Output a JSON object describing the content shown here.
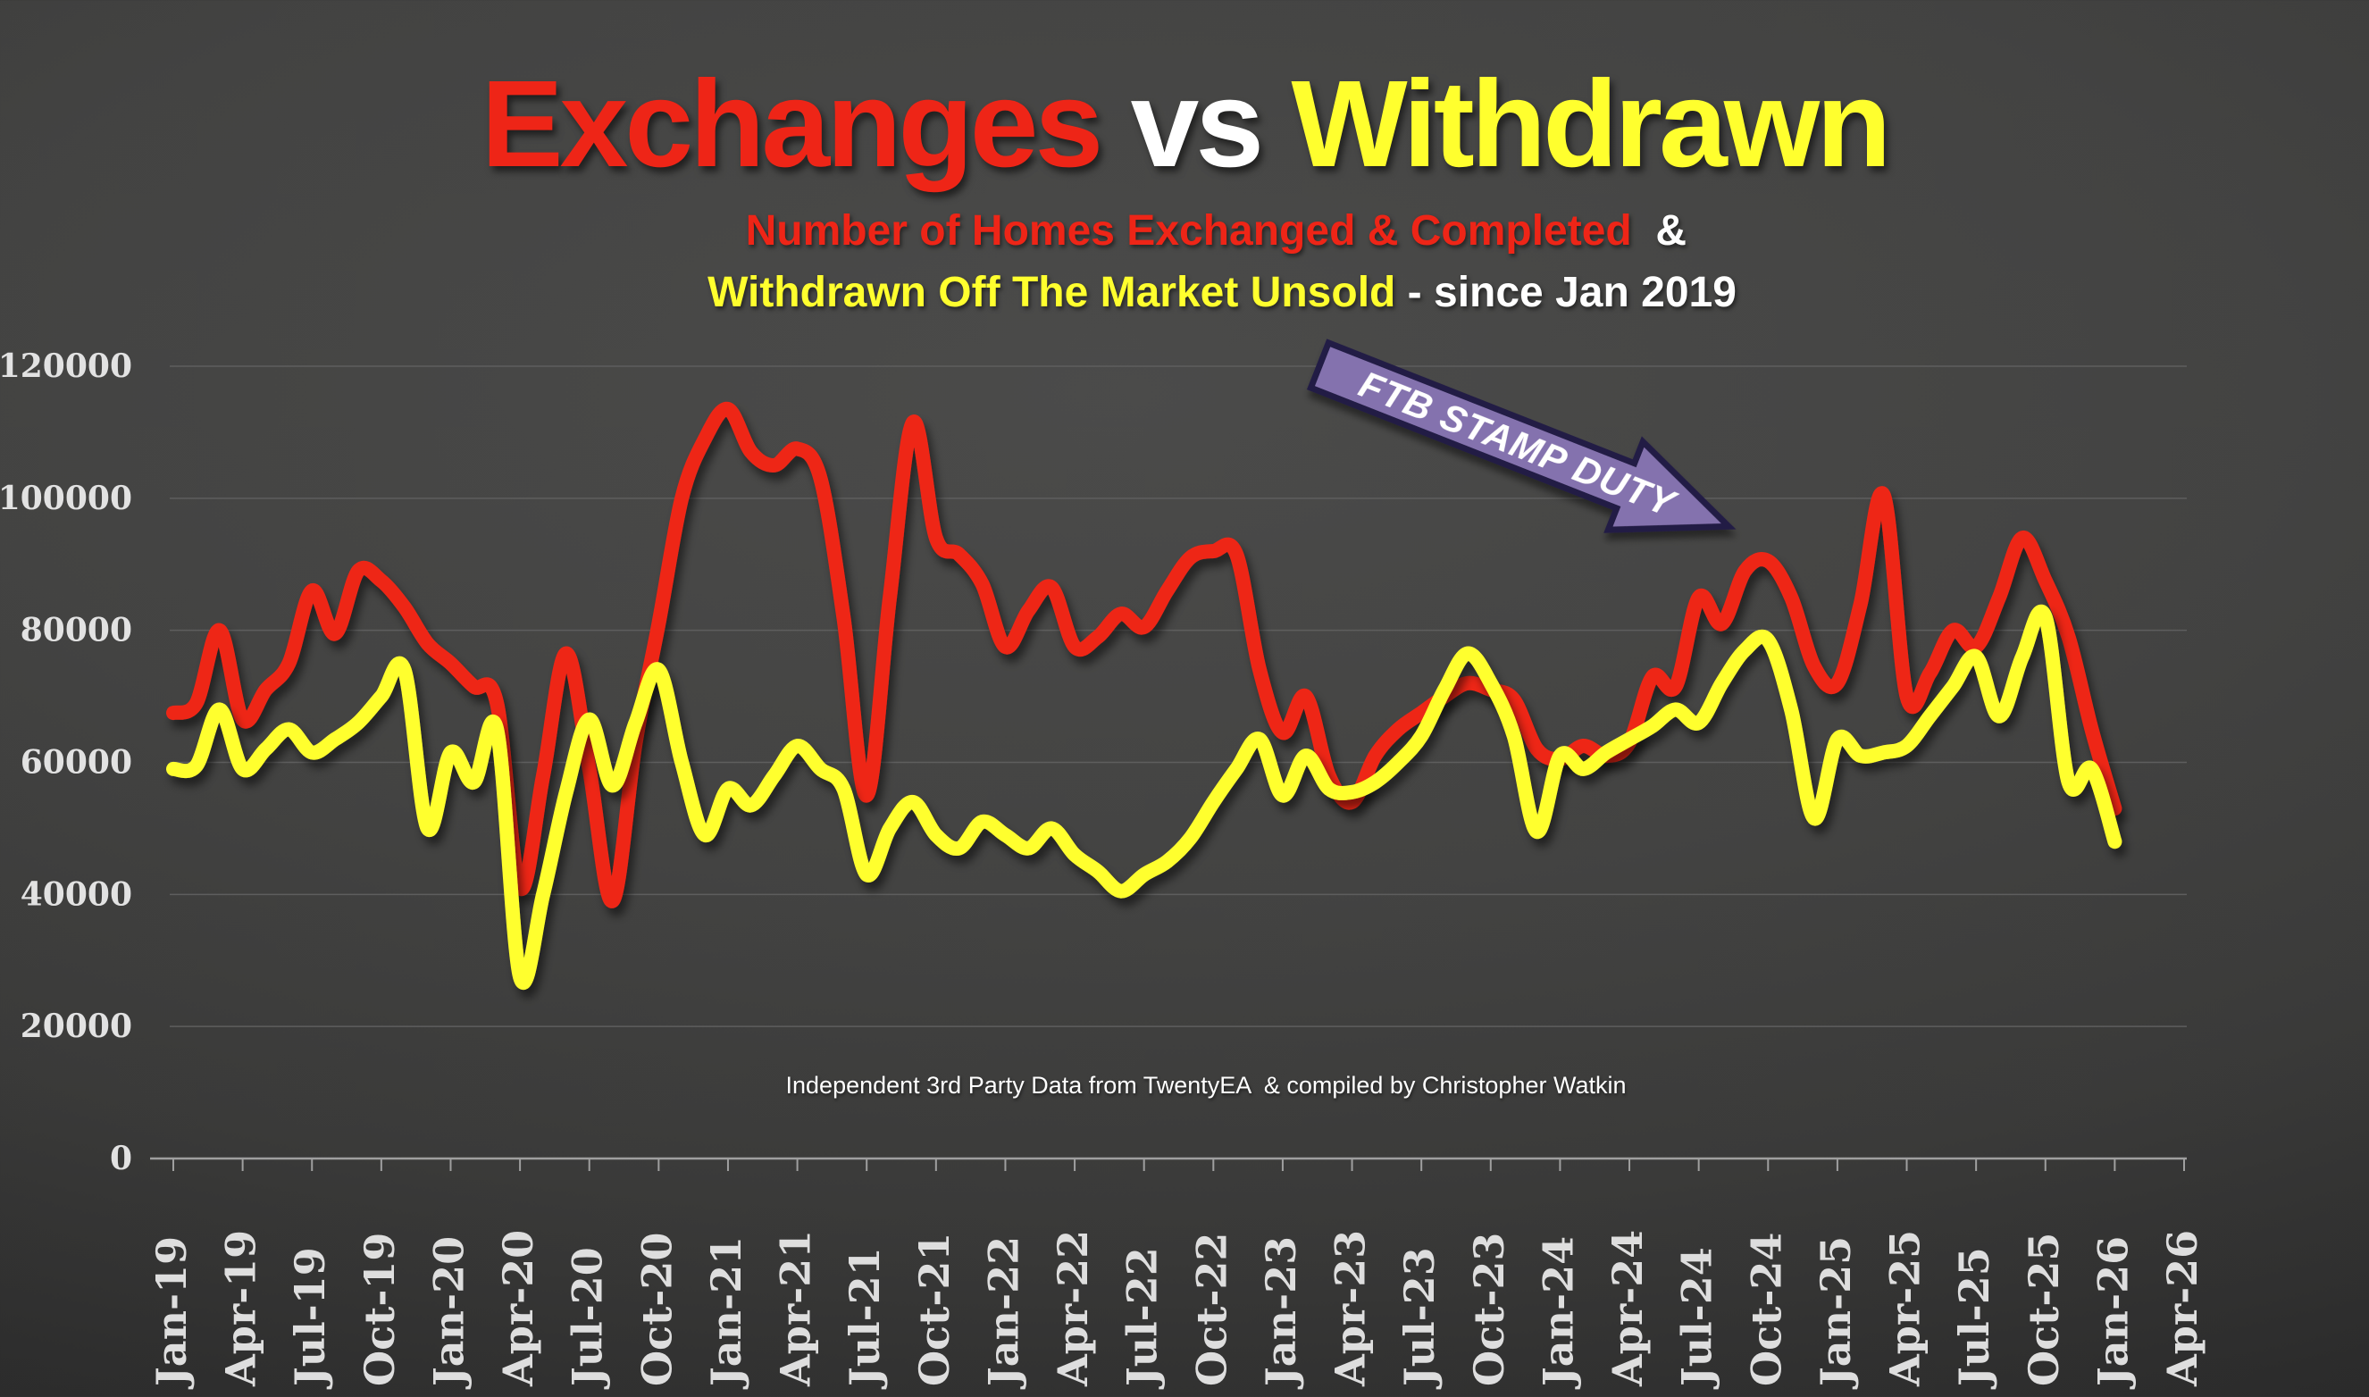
{
  "title": {
    "part1": "Exchanges",
    "part2": " vs ",
    "part3": "Withdrawn"
  },
  "subtitle": {
    "line1_red": "Number of Homes Exchanged & Completed",
    "line1_white": "  & ",
    "line2_yellow": "Withdrawn Off The Market Unsold",
    "line2_white": " - since Jan 2019"
  },
  "annotation": {
    "label": "FTB STAMP DUTY",
    "fill": "#8472AE",
    "border": "#241B45"
  },
  "footer": {
    "text": "Independent 3rd Party Data from TwentyEA  & compiled by Christopher Watkin"
  },
  "colors": {
    "red": "#EE2517",
    "yellow": "#FFFF2E",
    "white": "#FFFFFF",
    "gridline": "#5E5E5E",
    "axis": "#9F9F9F",
    "label": "#E2E2E2",
    "background_center": "#4B4B4A",
    "background_edge": "#1F1F1F"
  },
  "chart_data": {
    "type": "line",
    "title": "Exchanges vs Withdrawn",
    "xlabel": "",
    "ylabel": "",
    "x_unit": "month",
    "x_start": "Jan-19",
    "x_end": "Jan-26",
    "points_count": 85,
    "ylim": [
      0,
      120000
    ],
    "y_ticks": [
      0,
      20000,
      40000,
      60000,
      80000,
      100000,
      120000
    ],
    "grid": "horizontal",
    "legend_position": "none",
    "x_tick_labels": [
      "Jan-19",
      "Apr-19",
      "Jul-19",
      "Oct-19",
      "Jan-20",
      "Apr-20",
      "Jul-20",
      "Oct-20",
      "Jan-21",
      "Apr-21",
      "Jul-21",
      "Oct-21",
      "Jan-22",
      "Apr-22",
      "Jul-22",
      "Oct-22",
      "Jan-23",
      "Apr-23",
      "Jul-23",
      "Oct-23",
      "Jan-24",
      "Apr-24",
      "Jul-24",
      "Oct-24",
      "Jan-25",
      "Apr-25",
      "Jul-25",
      "Oct-25",
      "Jan-26",
      "Apr-26"
    ],
    "series": [
      {
        "key": "exchanges",
        "name": "Number of Homes Exchanged & Completed",
        "color": "#EE2517",
        "values": [
          67500,
          69000,
          80000,
          66500,
          71000,
          75000,
          86000,
          79500,
          89000,
          87500,
          83500,
          78000,
          75000,
          71500,
          69000,
          41000,
          58000,
          76500,
          59000,
          39000,
          63000,
          81000,
          100000,
          109000,
          113500,
          107000,
          105000,
          107500,
          103000,
          82000,
          55000,
          85000,
          111500,
          94000,
          91500,
          87000,
          77500,
          83000,
          86500,
          77500,
          79000,
          82500,
          80500,
          86000,
          91000,
          92000,
          91500,
          74000,
          64500,
          70000,
          58000,
          54000,
          61000,
          65000,
          67500,
          70000,
          72000,
          71000,
          69500,
          62000,
          60500,
          62500,
          61000,
          63000,
          73000,
          71500,
          85000,
          81000,
          89000,
          90500,
          85000,
          74500,
          72000,
          84000,
          100500,
          70000,
          73500,
          80000,
          77500,
          85000,
          94000,
          87500,
          79000,
          65000,
          53000
        ]
      },
      {
        "key": "withdrawn",
        "name": "Withdrawn Off The Market Unsold",
        "color": "#FFFF2E",
        "values": [
          59000,
          59500,
          68000,
          59000,
          62000,
          65000,
          61500,
          63500,
          66000,
          70000,
          74000,
          50000,
          61500,
          57000,
          65000,
          27500,
          40000,
          55500,
          66500,
          56500,
          66000,
          74000,
          60000,
          49000,
          56000,
          53500,
          58000,
          62500,
          59000,
          56000,
          43000,
          50000,
          54000,
          49000,
          47000,
          51000,
          49000,
          47000,
          50000,
          46000,
          43500,
          40500,
          43000,
          45000,
          48500,
          54000,
          59000,
          63500,
          55000,
          61000,
          56000,
          55500,
          57000,
          60000,
          64000,
          71000,
          76500,
          72000,
          64000,
          49500,
          61000,
          59000,
          61500,
          63500,
          65500,
          68000,
          66000,
          72000,
          77000,
          78500,
          68000,
          51500,
          63500,
          61000,
          61500,
          62500,
          67000,
          71500,
          76000,
          67000,
          76000,
          82000,
          57000,
          59000,
          48000
        ]
      }
    ]
  }
}
